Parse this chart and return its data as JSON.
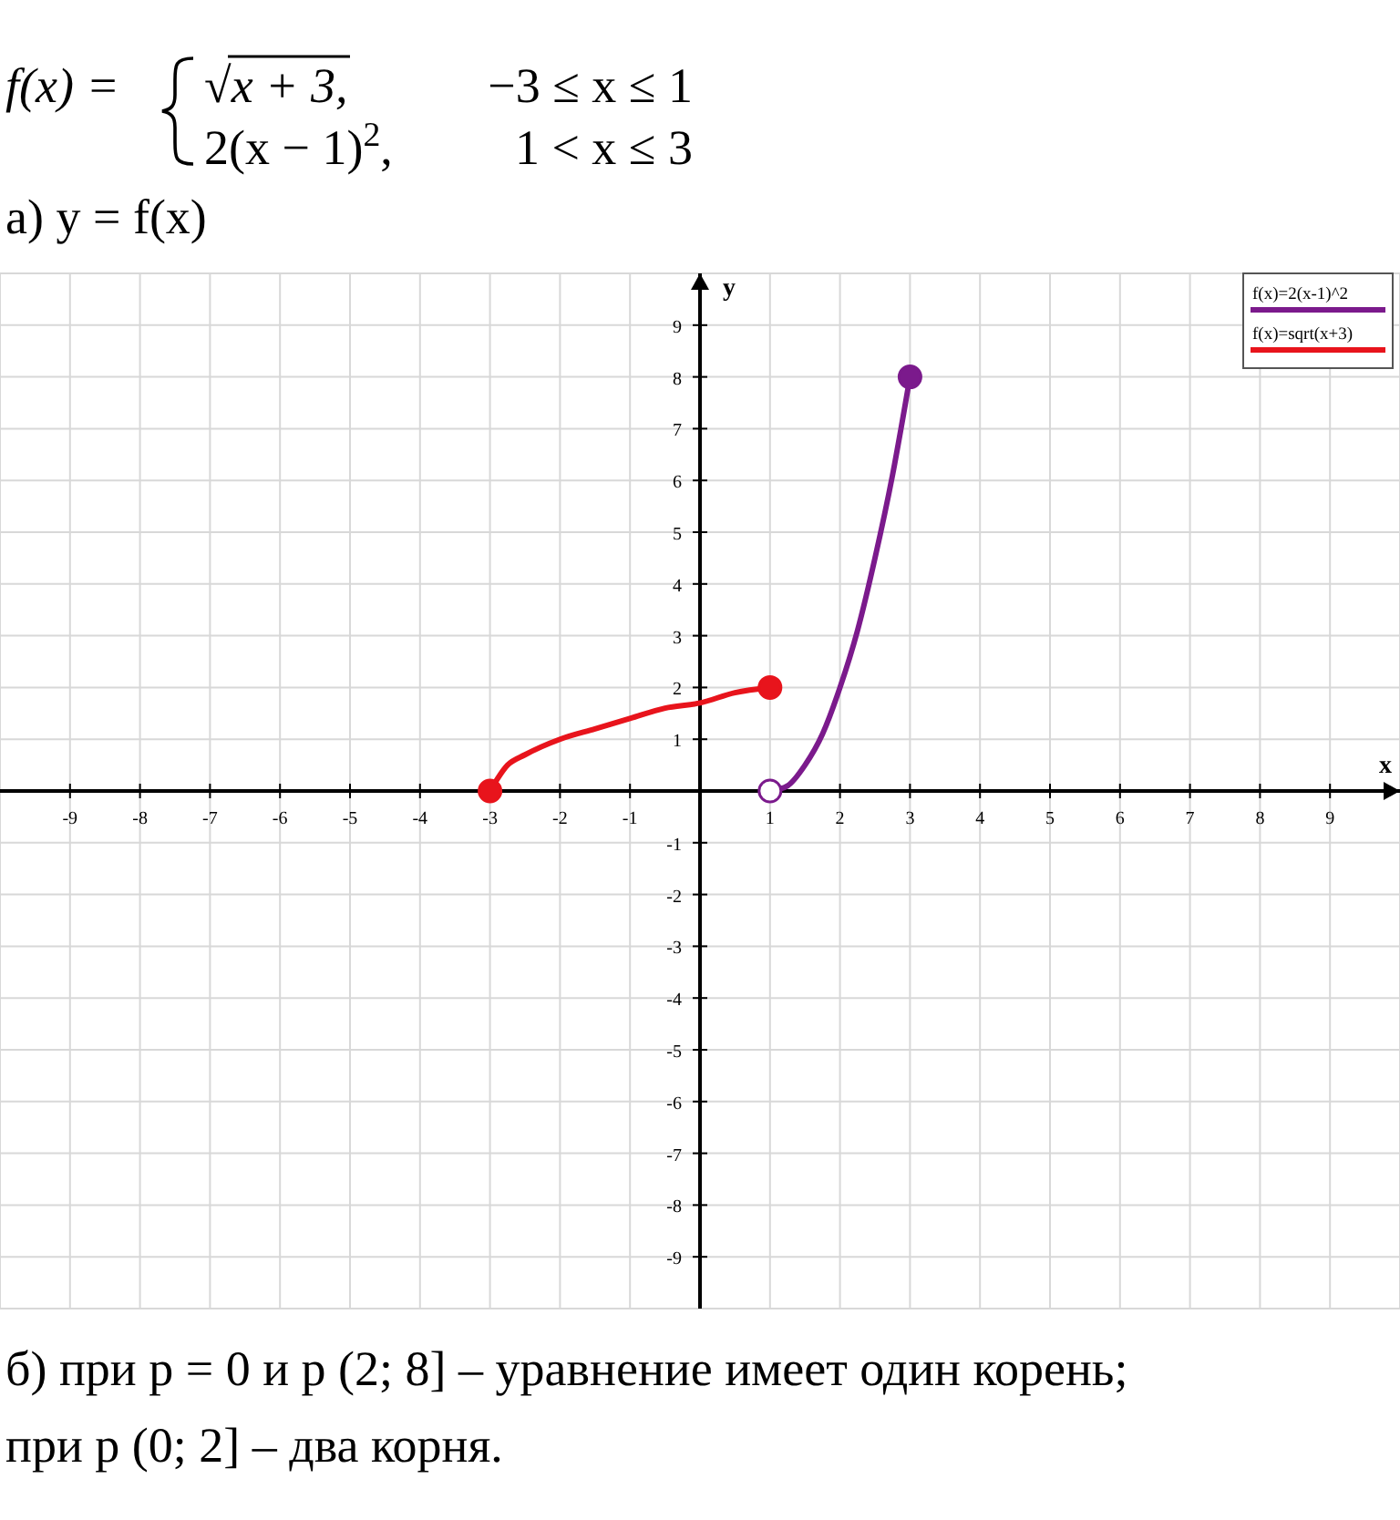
{
  "chart_data": {
    "type": "line",
    "xlabel": "x",
    "ylabel": "y",
    "xlim": [
      -10,
      10
    ],
    "ylim": [
      -10,
      10
    ],
    "xticks": [
      -9,
      -8,
      -7,
      -6,
      -5,
      -4,
      -3,
      -2,
      -1,
      1,
      2,
      3,
      4,
      5,
      6,
      7,
      8,
      9
    ],
    "yticks": [
      -9,
      -8,
      -7,
      -6,
      -5,
      -4,
      -3,
      -2,
      -1,
      1,
      2,
      3,
      4,
      5,
      6,
      7,
      8,
      9
    ],
    "grid": true,
    "legend": "top right",
    "annotations": [
      "f(x) =",
      "√x + 3,",
      "−3 ≤ x ≤ 1",
      "2(x − 1)$^{2}$,",
      "1 < x ≤ 3",
      "а) y = f(x)",
      "б) при p = 0 и p (2; 8] – уравнение имеет один корень;",
      "при p (0; 2] – два корня."
    ],
    "series": [
      {
        "name": "f(x)=2(x-1)^2",
        "color": "#7b1a8c",
        "x": [
          1,
          1.25,
          1.5,
          1.75,
          2,
          2.25,
          2.5,
          2.75,
          3
        ],
        "values": [
          0,
          0.1,
          0.5,
          1.1,
          2,
          3.1,
          4.5,
          6.1,
          8
        ]
      },
      {
        "name": "f(x)=sqrt(x+3)",
        "color": "#e8141c",
        "x": [
          -3,
          -2.75,
          -2.5,
          -2,
          -1.5,
          -1,
          -0.5,
          0,
          0.5,
          1
        ],
        "values": [
          0,
          0.5,
          0.7,
          1,
          1.2,
          1.4,
          1.6,
          1.7,
          1.9,
          2
        ]
      },
      {
        "type": "scatter",
        "marker": "circle",
        "color": "#e8141c",
        "x": [
          -3,
          1
        ],
        "values": [
          0,
          2
        ]
      },
      {
        "type": "scatter",
        "marker": "circle",
        "color": "#7b1a8c",
        "x": [
          3
        ],
        "values": [
          8
        ]
      },
      {
        "type": "scatter",
        "marker": "circle",
        "color": "#ffffff",
        "x": [
          1
        ],
        "values": [
          0
        ]
      }
    ]
  }
}
